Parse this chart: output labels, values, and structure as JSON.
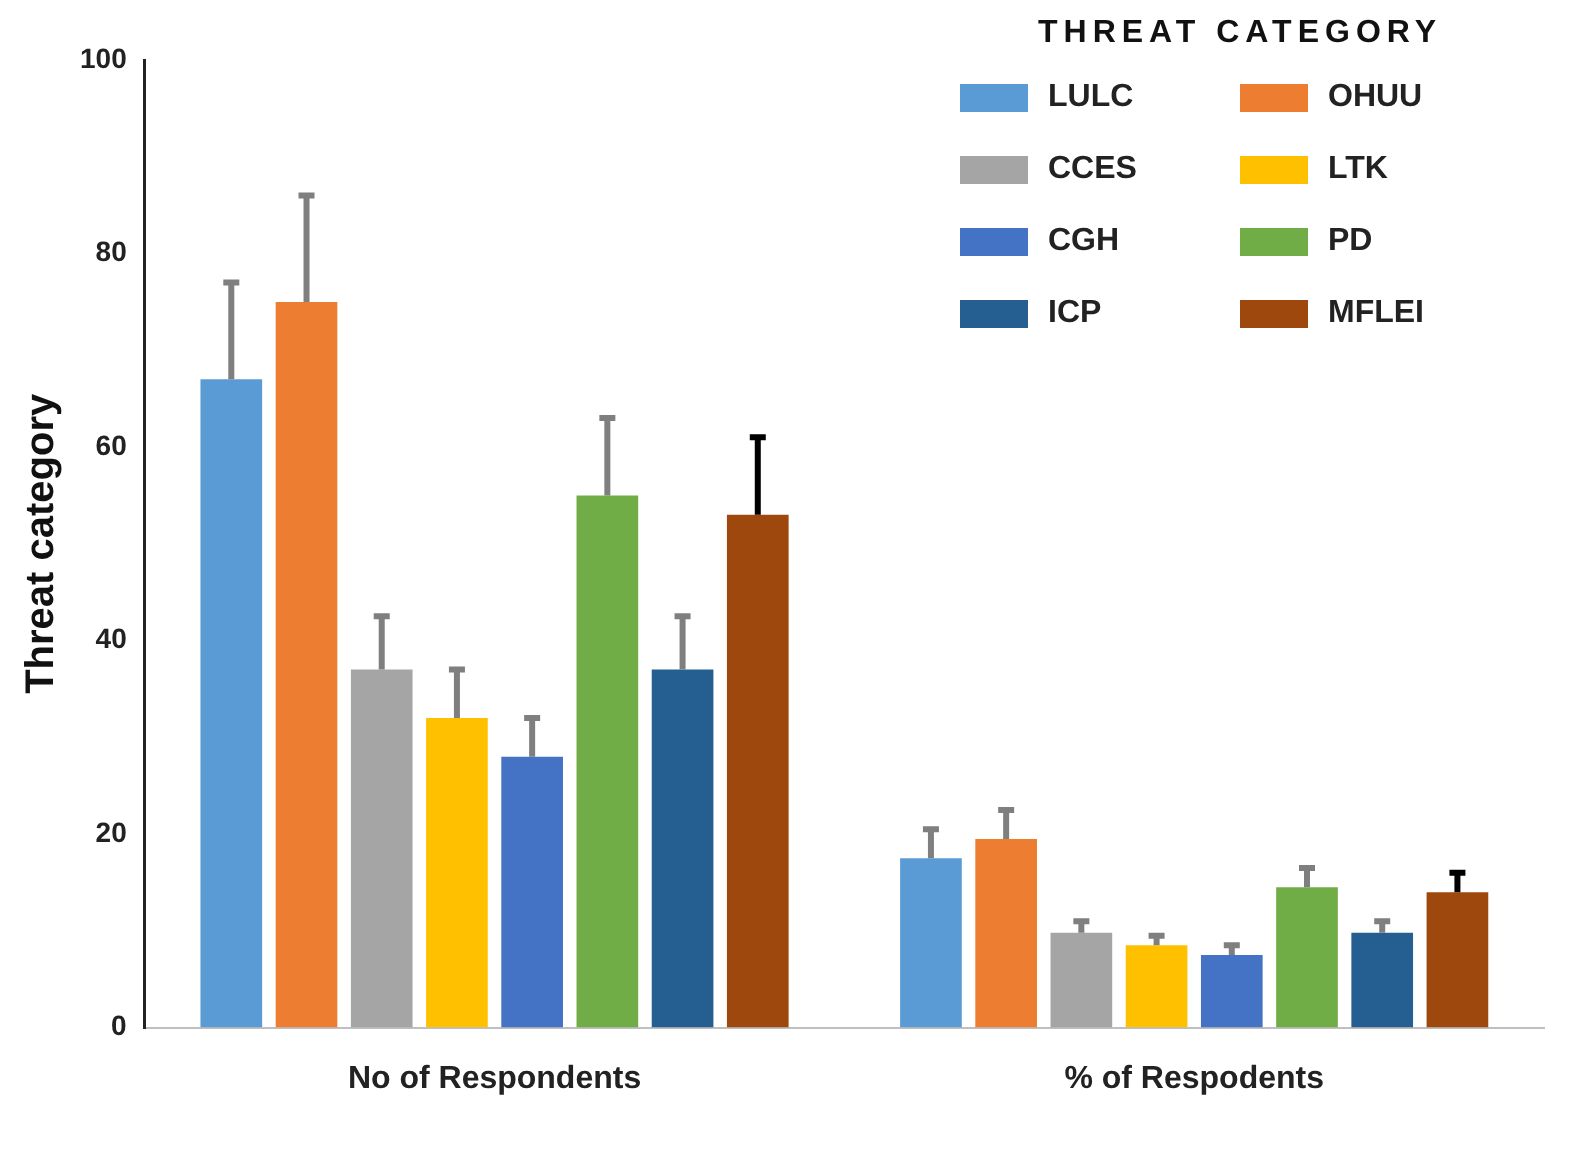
{
  "chart_data": {
    "type": "bar",
    "ylabel": "Threat category",
    "legend_title": "THREAT CATEGORY",
    "categories": [
      "No of Respondents",
      "% of Respodents"
    ],
    "ylim": [
      0,
      100
    ],
    "yticks": [
      0,
      20,
      40,
      60,
      80,
      100
    ],
    "grid": false,
    "legend": "top right",
    "series": [
      {
        "name": "LULC",
        "color": "#5b9bd5",
        "values": [
          67,
          17.5
        ],
        "errors": [
          [
            67,
            77
          ],
          [
            17.5,
            20.5
          ]
        ]
      },
      {
        "name": "OHUU",
        "color": "#ed7d31",
        "values": [
          75,
          19.5
        ],
        "errors": [
          [
            75,
            86
          ],
          [
            19.5,
            22.5
          ]
        ]
      },
      {
        "name": "CCES",
        "color": "#a5a5a5",
        "values": [
          37,
          9.8
        ],
        "errors": [
          [
            37,
            42.5
          ],
          [
            9.8,
            11
          ]
        ]
      },
      {
        "name": "LTK",
        "color": "#ffc000",
        "values": [
          32,
          8.5
        ],
        "errors": [
          [
            32,
            37
          ],
          [
            8.5,
            9.5
          ]
        ]
      },
      {
        "name": "CGH",
        "color": "#4472c4",
        "values": [
          28,
          7.5
        ],
        "errors": [
          [
            28,
            32
          ],
          [
            7.5,
            8.5
          ]
        ]
      },
      {
        "name": "PD",
        "color": "#70ad47",
        "values": [
          55,
          14.5
        ],
        "errors": [
          [
            55,
            63
          ],
          [
            14.5,
            16.5
          ]
        ]
      },
      {
        "name": "ICP",
        "color": "#255e91",
        "values": [
          37,
          9.8
        ],
        "errors": [
          [
            37,
            42.5
          ],
          [
            9.8,
            11
          ]
        ]
      },
      {
        "name": "MFLEI",
        "color": "#9e480e",
        "values": [
          53,
          14
        ],
        "errors": [
          [
            53,
            61
          ],
          [
            14,
            16
          ]
        ]
      }
    ]
  }
}
